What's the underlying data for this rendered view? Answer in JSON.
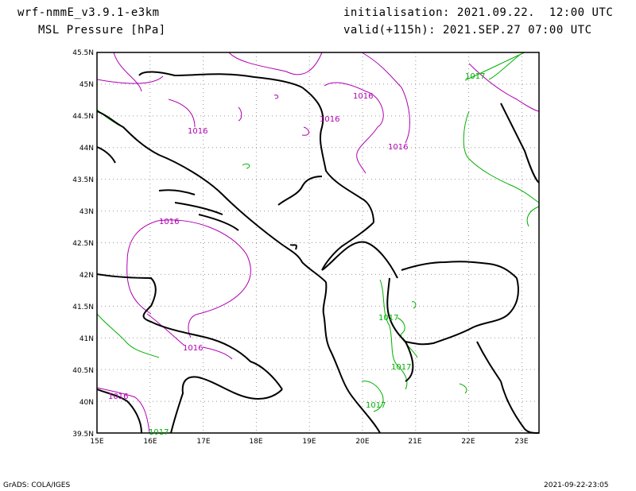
{
  "header": {
    "model": "wrf-nmmE_v3.9.1-e3km",
    "field": "MSL Pressure [hPa]",
    "init": "initialisation: 2021.09.22.  12:00 UTC",
    "valid": "valid(+115h): 2021.SEP.27 07:00 UTC"
  },
  "map": {
    "lat_labels": [
      "45.5N",
      "45N",
      "44.5N",
      "44N",
      "43.5N",
      "43N",
      "42.5N",
      "42N",
      "41.5N",
      "41N",
      "40.5N",
      "40N",
      "39.5N"
    ],
    "lon_labels": [
      "15E",
      "16E",
      "17E",
      "18E",
      "19E",
      "20E",
      "21E",
      "22E",
      "23E"
    ],
    "isobar_labels": [
      {
        "text": "1016",
        "series": "1016"
      },
      {
        "text": "1016",
        "series": "1016"
      },
      {
        "text": "1016",
        "series": "1016"
      },
      {
        "text": "1016",
        "series": "1016"
      },
      {
        "text": "1016",
        "series": "1016"
      },
      {
        "text": "1016",
        "series": "1016"
      },
      {
        "text": "1016",
        "series": "1016"
      },
      {
        "text": "1017",
        "series": "1017"
      },
      {
        "text": "1017",
        "series": "1017"
      },
      {
        "text": "1017",
        "series": "1017"
      },
      {
        "text": "1017",
        "series": "1017"
      },
      {
        "text": "1017",
        "series": "1017"
      }
    ],
    "colors": {
      "isobar_1016": "#b000b0",
      "isobar_1017": "#00b000",
      "coast": "#000000",
      "grid": "#999999"
    }
  },
  "footer": {
    "left": "GrADS: COLA/IGES",
    "right": "2021-09-22-23:05"
  }
}
